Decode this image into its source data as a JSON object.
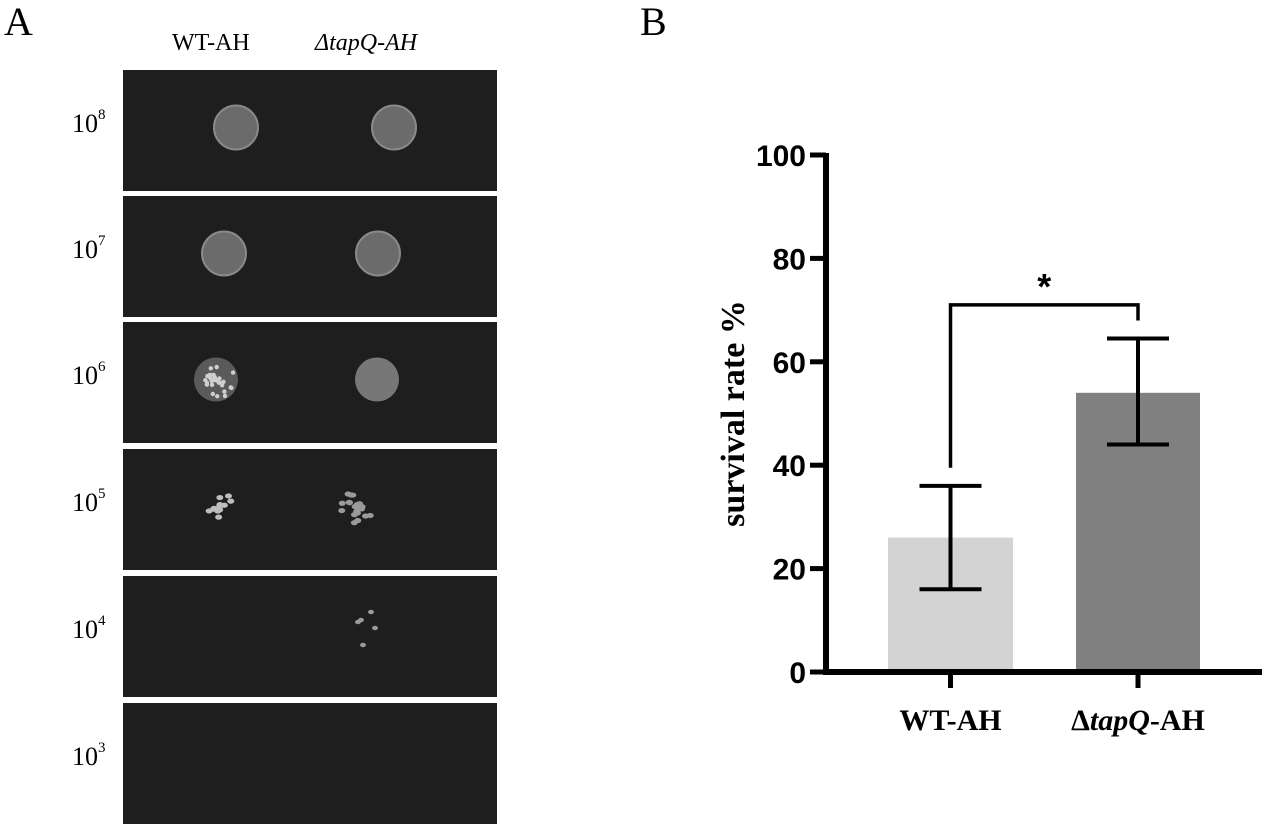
{
  "panel_a": {
    "letter": "A",
    "columns": [
      {
        "text": "WT-AH",
        "italic_prefix": ""
      },
      {
        "delta": "Δ",
        "italic": "tapQ-AH"
      }
    ],
    "rows": [
      {
        "base": "10",
        "exp": "8"
      },
      {
        "base": "10",
        "exp": "7"
      },
      {
        "base": "10",
        "exp": "6"
      },
      {
        "base": "10",
        "exp": "5"
      },
      {
        "base": "10",
        "exp": "4"
      },
      {
        "base": "10",
        "exp": "3"
      }
    ]
  },
  "panel_b": {
    "letter": "B"
  },
  "chart_data": {
    "type": "bar",
    "title": "",
    "xlabel": "",
    "ylabel": "survival rate %",
    "ylim": [
      0,
      100
    ],
    "yticks": [
      0,
      20,
      40,
      60,
      80,
      100
    ],
    "categories": [
      "WT-AH",
      "ΔtapQ-AH"
    ],
    "category_parts": [
      {
        "plain": "WT-AH",
        "italic": "",
        "suffix": ""
      },
      {
        "plain": "Δ",
        "italic": "tapQ",
        "suffix": "-AH"
      }
    ],
    "values": [
      26,
      54
    ],
    "error_low": [
      16,
      44
    ],
    "error_high": [
      36,
      64.5
    ],
    "colors": [
      "#d3d3d3",
      "#808080"
    ],
    "significance": {
      "between": [
        0,
        1
      ],
      "label": "*",
      "level": 71
    },
    "grid": false
  }
}
